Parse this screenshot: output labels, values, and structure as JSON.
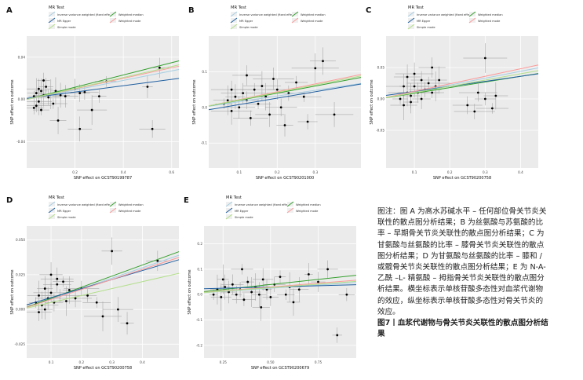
{
  "legend": {
    "title": "MR Test",
    "items": [
      {
        "label": "Inverse variance weighted (fixed effects)",
        "color": "#a6cee3"
      },
      {
        "label": "Weighted median",
        "color": "#33a02c"
      },
      {
        "label": "MR Egger",
        "color": "#1f5fa0"
      },
      {
        "label": "Weighted mode",
        "color": "#fb9a99"
      },
      {
        "label": "Simple mode",
        "color": "#b2df8a"
      }
    ]
  },
  "y_axis_label": "SNP effect on outcome",
  "caption": {
    "body": "图注：图 A 为高水苏碱水平 – 任何部位骨关节炎关联性的散点图分析结果；B 为丝氨酸与苏氨酸的比率 – 早期骨关节炎关联性的散点图分析结果；C 为甘氨酸与丝氨酸的比率 – 膝骨关节炎关联性的散点图分析结果；D 为甘氨酸与丝氨酸的比率 – 膝和 / 或髋骨关节炎关联性的散点图分析结果；E 为 N-A- 乙酰 –L- 精氨酸 – 拇指骨关节炎关联性的散点图分析结果。横坐标表示单核苷酸多态性对血浆代谢物的效应，纵坐标表示单核苷酸多态性对骨关节炎的效应。",
    "figure_title": "图7丨血浆代谢物与骨关节炎关联性的散点图分析结果"
  },
  "chart_data": [
    {
      "panel": "A",
      "type": "scatter",
      "xlabel": "SNP effect on GCST90199787",
      "ylabel": "SNP effect on outcome",
      "xlim": [
        0,
        0.63
      ],
      "ylim": [
        -0.065,
        0.06
      ],
      "xticks": [
        0.2,
        0.4,
        0.6
      ],
      "xtick_labels": [
        "0.2",
        "0.4",
        "0.6"
      ],
      "yticks": [
        -0.04,
        0.0,
        0.04
      ],
      "ytick_labels": [
        "-0.04",
        "0.00",
        "0.04"
      ],
      "points": [
        [
          0.03,
          0.003
        ],
        [
          0.04,
          0.006
        ],
        [
          0.05,
          -0.002
        ],
        [
          0.06,
          0.008
        ],
        [
          0.07,
          0.004
        ],
        [
          0.05,
          0.01
        ],
        [
          0.08,
          0.012
        ],
        [
          0.09,
          0.002
        ],
        [
          0.04,
          -0.006
        ],
        [
          0.06,
          -0.01
        ],
        [
          0.1,
          0.005
        ],
        [
          0.12,
          0.008
        ],
        [
          0.14,
          0.004
        ],
        [
          0.16,
          0.003
        ],
        [
          0.2,
          0.01
        ],
        [
          0.22,
          0.006
        ],
        [
          0.24,
          0.007
        ],
        [
          0.3,
          0.003
        ],
        [
          0.33,
          0.017
        ],
        [
          0.27,
          -0.01
        ],
        [
          0.13,
          -0.02
        ],
        [
          0.22,
          -0.028
        ],
        [
          0.5,
          0.012
        ],
        [
          0.55,
          0.03
        ],
        [
          0.52,
          -0.028
        ],
        [
          0.07,
          0.018
        ],
        [
          0.03,
          -0.008
        ],
        [
          0.11,
          -0.004
        ]
      ],
      "fits": [
        {
          "method": "Inverse variance weighted (fixed effects)",
          "intercept": 0.0,
          "slope": 0.045
        },
        {
          "method": "Weighted median",
          "intercept": 0.0,
          "slope": 0.058
        },
        {
          "method": "MR Egger",
          "intercept": 0.001,
          "slope": 0.03
        },
        {
          "method": "Weighted mode",
          "intercept": 0.0,
          "slope": 0.05
        },
        {
          "method": "Simple mode",
          "intercept": 0.0,
          "slope": 0.052
        }
      ]
    },
    {
      "panel": "B",
      "type": "scatter",
      "xlabel": "SNP effect on GCST90201000",
      "ylabel": "SNP effect on outcome",
      "xlim": [
        0.02,
        0.42
      ],
      "ylim": [
        -0.17,
        0.2
      ],
      "xticks": [
        0.1,
        0.2,
        0.3
      ],
      "xtick_labels": [
        "0.1",
        "0.2",
        "0.3"
      ],
      "yticks": [
        -0.1,
        0.0,
        0.1
      ],
      "ytick_labels": [
        "-0.1",
        "0.0",
        "0.1"
      ],
      "points": [
        [
          0.06,
          0.01
        ],
        [
          0.07,
          0.02
        ],
        [
          0.08,
          -0.01
        ],
        [
          0.09,
          0.03
        ],
        [
          0.1,
          0.0
        ],
        [
          0.11,
          0.04
        ],
        [
          0.12,
          0.02
        ],
        [
          0.13,
          -0.03
        ],
        [
          0.14,
          0.05
        ],
        [
          0.15,
          0.01
        ],
        [
          0.16,
          0.06
        ],
        [
          0.17,
          0.03
        ],
        [
          0.18,
          -0.02
        ],
        [
          0.19,
          0.08
        ],
        [
          0.2,
          0.05
        ],
        [
          0.21,
          0.0
        ],
        [
          0.23,
          0.04
        ],
        [
          0.25,
          0.07
        ],
        [
          0.27,
          0.03
        ],
        [
          0.3,
          0.11
        ],
        [
          0.32,
          0.13
        ],
        [
          0.35,
          -0.02
        ],
        [
          0.22,
          -0.05
        ],
        [
          0.12,
          0.09
        ],
        [
          0.08,
          0.05
        ],
        [
          0.28,
          -0.04
        ]
      ],
      "fits": [
        {
          "method": "Inverse variance weighted (fixed effects)",
          "intercept": 0.0,
          "slope": 0.16
        },
        {
          "method": "Weighted median",
          "intercept": 0.0,
          "slope": 0.2
        },
        {
          "method": "MR Egger",
          "intercept": -0.01,
          "slope": 0.18
        },
        {
          "method": "Weighted mode",
          "intercept": 0.0,
          "slope": 0.22
        },
        {
          "method": "Simple mode",
          "intercept": 0.0,
          "slope": 0.21
        }
      ]
    },
    {
      "panel": "C",
      "type": "scatter",
      "xlabel": "SNP effect on GCST90200758",
      "ylabel": "SNP effect on outcome",
      "xlim": [
        0.02,
        0.45
      ],
      "ylim": [
        -0.11,
        0.1
      ],
      "xticks": [
        0.1,
        0.2,
        0.3,
        0.4
      ],
      "xtick_labels": [
        "0.1",
        "0.2",
        "0.3",
        "0.4"
      ],
      "yticks": [
        -0.05,
        0.0,
        0.05
      ],
      "ytick_labels": [
        "-0.05",
        "0.00",
        "0.05"
      ],
      "points": [
        [
          0.06,
          0.0
        ],
        [
          0.07,
          -0.01
        ],
        [
          0.08,
          0.01
        ],
        [
          0.09,
          0.005
        ],
        [
          0.1,
          0.02
        ],
        [
          0.11,
          0.01
        ],
        [
          0.12,
          0.03
        ],
        [
          0.13,
          0.015
        ],
        [
          0.14,
          0.025
        ],
        [
          0.15,
          0.01
        ],
        [
          0.16,
          0.02
        ],
        [
          0.17,
          0.03
        ],
        [
          0.08,
          0.035
        ],
        [
          0.1,
          0.04
        ],
        [
          0.12,
          0.0
        ],
        [
          0.25,
          -0.01
        ],
        [
          0.27,
          -0.02
        ],
        [
          0.3,
          0.0
        ],
        [
          0.32,
          -0.015
        ],
        [
          0.3,
          0.065
        ],
        [
          0.33,
          0.005
        ],
        [
          0.07,
          0.02
        ],
        [
          0.09,
          -0.005
        ],
        [
          0.15,
          0.05
        ],
        [
          0.28,
          0.01
        ]
      ],
      "fits": [
        {
          "method": "Inverse variance weighted (fixed effects)",
          "intercept": 0.0,
          "slope": 0.11
        },
        {
          "method": "Weighted median",
          "intercept": 0.0,
          "slope": 0.09
        },
        {
          "method": "MR Egger",
          "intercept": 0.004,
          "slope": 0.08
        },
        {
          "method": "Weighted mode",
          "intercept": 0.0,
          "slope": 0.12
        },
        {
          "method": "Simple mode",
          "intercept": 0.0,
          "slope": 0.1
        }
      ]
    },
    {
      "panel": "D",
      "type": "scatter",
      "xlabel": "SNP effect on GCST90200758",
      "ylabel": "SNP effect on outcome",
      "xlim": [
        0.02,
        0.52
      ],
      "ylim": [
        -0.035,
        0.06
      ],
      "xticks": [
        0.1,
        0.2,
        0.3,
        0.4
      ],
      "xtick_labels": [
        "0.1",
        "0.2",
        "0.3",
        "0.4"
      ],
      "yticks": [
        -0.025,
        0.0,
        0.025,
        0.05
      ],
      "ytick_labels": [
        "-0.025",
        "0.000",
        "0.025",
        "0.050"
      ],
      "points": [
        [
          0.05,
          0.005
        ],
        [
          0.06,
          0.01
        ],
        [
          0.07,
          0.003
        ],
        [
          0.08,
          0.015
        ],
        [
          0.09,
          0.008
        ],
        [
          0.1,
          0.012
        ],
        [
          0.11,
          0.005
        ],
        [
          0.12,
          0.018
        ],
        [
          0.13,
          0.01
        ],
        [
          0.14,
          0.02
        ],
        [
          0.15,
          0.006
        ],
        [
          0.16,
          0.014
        ],
        [
          0.1,
          0.025
        ],
        [
          0.12,
          0.022
        ],
        [
          0.08,
          0.0
        ],
        [
          0.06,
          -0.002
        ],
        [
          0.2,
          0.015
        ],
        [
          0.22,
          0.01
        ],
        [
          0.25,
          0.005
        ],
        [
          0.27,
          -0.005
        ],
        [
          0.3,
          0.042
        ],
        [
          0.32,
          0.0
        ],
        [
          0.35,
          -0.01
        ],
        [
          0.45,
          0.035
        ],
        [
          0.18,
          0.008
        ]
      ],
      "fits": [
        {
          "method": "Inverse variance weighted (fixed effects)",
          "intercept": 0.0,
          "slope": 0.075
        },
        {
          "method": "Weighted median",
          "intercept": 0.0,
          "slope": 0.08
        },
        {
          "method": "MR Egger",
          "intercept": 0.002,
          "slope": 0.065
        },
        {
          "method": "Weighted mode",
          "intercept": 0.0,
          "slope": 0.072
        },
        {
          "method": "Simple mode",
          "intercept": 0.0,
          "slope": 0.05
        }
      ]
    },
    {
      "panel": "E",
      "type": "scatter",
      "xlabel": "SNP effect on GCST90200679",
      "ylabel": "SNP effect on outcome",
      "xlim": [
        0.15,
        0.95
      ],
      "ylim": [
        -0.25,
        0.27
      ],
      "xticks": [
        0.25,
        0.5,
        0.75
      ],
      "xtick_labels": [
        "0.25",
        "0.50",
        "0.75"
      ],
      "yticks": [
        -0.2,
        -0.1,
        0.0,
        0.1,
        0.2
      ],
      "ytick_labels": [
        "-0.2",
        "-0.1",
        "0.0",
        "0.1",
        "0.2"
      ],
      "points": [
        [
          0.2,
          0.0
        ],
        [
          0.22,
          0.02
        ],
        [
          0.24,
          -0.01
        ],
        [
          0.26,
          0.03
        ],
        [
          0.28,
          0.01
        ],
        [
          0.3,
          0.04
        ],
        [
          0.32,
          0.0
        ],
        [
          0.34,
          0.02
        ],
        [
          0.36,
          -0.02
        ],
        [
          0.38,
          0.05
        ],
        [
          0.4,
          0.01
        ],
        [
          0.42,
          0.03
        ],
        [
          0.44,
          0.0
        ],
        [
          0.46,
          0.06
        ],
        [
          0.48,
          0.02
        ],
        [
          0.5,
          -0.01
        ],
        [
          0.52,
          0.04
        ],
        [
          0.55,
          0.07
        ],
        [
          0.58,
          0.0
        ],
        [
          0.6,
          0.03
        ],
        [
          0.62,
          -0.03
        ],
        [
          0.65,
          0.02
        ],
        [
          0.7,
          0.08
        ],
        [
          0.75,
          0.05
        ],
        [
          0.8,
          0.1
        ],
        [
          0.85,
          -0.16
        ],
        [
          0.9,
          0.0
        ],
        [
          0.35,
          0.1
        ],
        [
          0.25,
          0.06
        ],
        [
          0.45,
          -0.05
        ]
      ],
      "fits": [
        {
          "method": "Inverse variance weighted (fixed effects)",
          "intercept": 0.0,
          "slope": 0.05
        },
        {
          "method": "Weighted median",
          "intercept": 0.0,
          "slope": 0.08
        },
        {
          "method": "MR Egger",
          "intercept": 0.02,
          "slope": 0.02
        },
        {
          "method": "Weighted mode",
          "intercept": 0.0,
          "slope": 0.06
        },
        {
          "method": "Simple mode",
          "intercept": 0.0,
          "slope": 0.055
        }
      ]
    }
  ]
}
